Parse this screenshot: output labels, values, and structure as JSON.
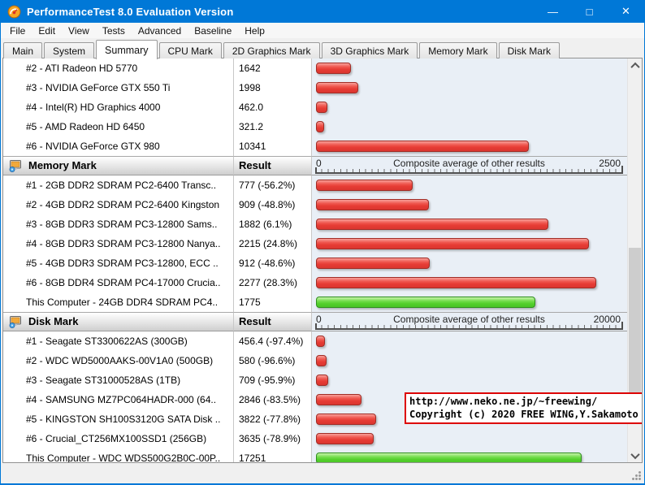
{
  "window": {
    "title": "PerformanceTest 8.0 Evaluation Version",
    "controls": [
      {
        "name": "minimize",
        "glyph": "—"
      },
      {
        "name": "maximize",
        "glyph": "□"
      },
      {
        "name": "close",
        "glyph": "✕"
      }
    ]
  },
  "menu": [
    "File",
    "Edit",
    "View",
    "Tests",
    "Advanced",
    "Baseline",
    "Help"
  ],
  "tabs": {
    "active": "Summary",
    "items": [
      "Main",
      "System",
      "Summary",
      "CPU Mark",
      "2D Graphics Mark",
      "3D Graphics Mark",
      "Memory Mark",
      "Disk Mark"
    ]
  },
  "colors": {
    "titlebar": "#0078d7",
    "bar_red": "#e63b34",
    "bar_green": "#53cf2b",
    "chart_bg": "#e9eff6",
    "overlay_border": "#dd0000"
  },
  "sections": [
    {
      "header": null,
      "scale_max": 15000,
      "rows": [
        {
          "label": "#2 - ATI Radeon HD 5770",
          "result": "1642",
          "value": 1642,
          "bar": "red"
        },
        {
          "label": "#3 - NVIDIA GeForce GTX 550 Ti",
          "result": "1998",
          "value": 1998,
          "bar": "red"
        },
        {
          "label": "#4 - Intel(R) HD Graphics 4000",
          "result": "462.0",
          "value": 462,
          "bar": "red"
        },
        {
          "label": "#5 - AMD Radeon HD 6450",
          "result": "321.2",
          "value": 321.2,
          "bar": "red"
        },
        {
          "label": "#6 - NVIDIA GeForce GTX 980",
          "result": "10341",
          "value": 10341,
          "bar": "red"
        }
      ]
    },
    {
      "header": {
        "title": "Memory Mark",
        "result_label": "Result",
        "scale_min": "0",
        "scale_label": "Composite average of other results",
        "scale_max_label": "2500"
      },
      "scale_max": 2500,
      "rows": [
        {
          "label": "#1 - 2GB DDR2 SDRAM PC2-6400 Transc..",
          "result": "777 (-56.2%)",
          "value": 777,
          "bar": "red"
        },
        {
          "label": "#2 - 4GB DDR2 SDRAM PC2-6400 Kingston",
          "result": "909 (-48.8%)",
          "value": 909,
          "bar": "red"
        },
        {
          "label": "#3 - 8GB DDR3 SDRAM PC3-12800 Sams..",
          "result": "1882 (6.1%)",
          "value": 1882,
          "bar": "red"
        },
        {
          "label": "#4 - 8GB DDR3 SDRAM PC3-12800 Nanya..",
          "result": "2215 (24.8%)",
          "value": 2215,
          "bar": "red"
        },
        {
          "label": "#5 - 4GB DDR3 SDRAM PC3-12800, ECC ..",
          "result": "912 (-48.6%)",
          "value": 912,
          "bar": "red"
        },
        {
          "label": "#6 - 8GB DDR4 SDRAM PC4-17000 Crucia..",
          "result": "2277 (28.3%)",
          "value": 2277,
          "bar": "red"
        },
        {
          "label": "This Computer - 24GB DDR4 SDRAM PC4..",
          "result": "1775",
          "value": 1775,
          "bar": "green"
        }
      ]
    },
    {
      "header": {
        "title": "Disk Mark",
        "result_label": "Result",
        "scale_min": "0",
        "scale_label": "Composite average of other results",
        "scale_max_label": "20000"
      },
      "scale_max": 20000,
      "rows": [
        {
          "label": "#1 - Seagate ST3300622AS (300GB)",
          "result": "456.4 (-97.4%)",
          "value": 456.4,
          "bar": "red"
        },
        {
          "label": "#2 - WDC WD5000AAKS-00V1A0 (500GB)",
          "result": "580 (-96.6%)",
          "value": 580,
          "bar": "red"
        },
        {
          "label": "#3 - Seagate ST31000528AS (1TB)",
          "result": "709 (-95.9%)",
          "value": 709,
          "bar": "red"
        },
        {
          "label": "#4 - SAMSUNG MZ7PC064HADR-000 (64..",
          "result": "2846 (-83.5%)",
          "value": 2846,
          "bar": "red"
        },
        {
          "label": "#5 - KINGSTON SH100S3120G SATA Disk ..",
          "result": "3822 (-77.8%)",
          "value": 3822,
          "bar": "red"
        },
        {
          "label": "#6 - Crucial_CT256MX100SSD1 (256GB)",
          "result": "3635 (-78.9%)",
          "value": 3635,
          "bar": "red"
        },
        {
          "label": "This Computer - WDC WDS500G2B0C-00P..",
          "result": "17251",
          "value": 17251,
          "bar": "green"
        }
      ]
    }
  ],
  "overlay": {
    "line1": "http://www.neko.ne.jp/~freewing/",
    "line2": "Copyright (c) 2020 FREE WING,Y.Sakamoto"
  }
}
